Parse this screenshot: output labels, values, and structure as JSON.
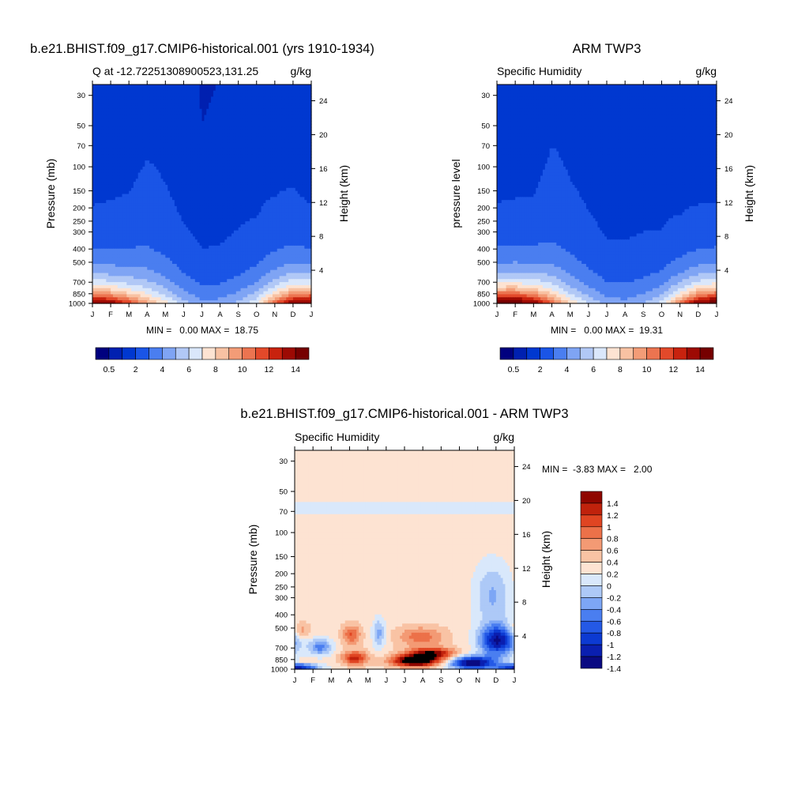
{
  "colors": {
    "seq": [
      "#00007f",
      "#0020b0",
      "#0038d0",
      "#1a55e6",
      "#4a7ef0",
      "#7fa4f4",
      "#b1c8f6",
      "#dae7fb",
      "#fde3d2",
      "#f8c2a3",
      "#f39c77",
      "#ec7450",
      "#e3492a",
      "#c8220e",
      "#9d0a03",
      "#760000"
    ],
    "div": [
      "#0a0a82",
      "#0a1fb0",
      "#0c3ad2",
      "#2459e6",
      "#4a7ef0",
      "#7da6f5",
      "#adc9f7",
      "#d9e8fb",
      "#fde3d2",
      "#f9c3a4",
      "#f39a74",
      "#ec7149",
      "#e04522",
      "#c0220c",
      "#8f0600"
    ],
    "frame": "#000000"
  },
  "chart_data": [
    {
      "type": "heatmap",
      "title": "b.e21.BHIST.f09_g17.CMIP6-historical.001 (yrs 1910-1934)",
      "left_label": "Q at -12.72251308900523,131.25",
      "right_label": "g/kg",
      "ylabel": "Pressure (mb)",
      "y2label": "Height (km)",
      "x_ticks": [
        "J",
        "F",
        "M",
        "A",
        "M",
        "J",
        "J",
        "A",
        "S",
        "O",
        "N",
        "D",
        "J"
      ],
      "y_ticks": [
        30,
        50,
        70,
        100,
        150,
        200,
        250,
        300,
        400,
        500,
        700,
        850,
        1000
      ],
      "y2_ticks": [
        24,
        20,
        16,
        12,
        8,
        4
      ],
      "ylim": [
        1000,
        25
      ],
      "log_scale": true,
      "minmax_text": "MIN =   0.00 MAX =  18.75",
      "min": 0.0,
      "max": 18.75,
      "colorbar_labels": [
        "0.5",
        "2",
        "4",
        "6",
        "8",
        "10",
        "12",
        "14"
      ],
      "levels": [
        0.25,
        0.5,
        1,
        2,
        3,
        4,
        5,
        6,
        7,
        8,
        9,
        10,
        11,
        12,
        14
      ],
      "surface_q": [
        15,
        13.5,
        11,
        8.5,
        6.5,
        4.5,
        3.3,
        3.5,
        4.3,
        6,
        10,
        14,
        15
      ],
      "mid_p": [
        300,
        320,
        360,
        430,
        460,
        480,
        490,
        490,
        480,
        430,
        370,
        330,
        300
      ]
    },
    {
      "type": "heatmap",
      "title": "ARM TWP3",
      "left_label": "Specific Humidity",
      "right_label": "g/kg",
      "ylabel": "pressure level",
      "y2label": "Height (km)",
      "x_ticks": [
        "J",
        "F",
        "M",
        "A",
        "M",
        "J",
        "J",
        "A",
        "S",
        "O",
        "N",
        "D",
        "J"
      ],
      "y_ticks": [
        30,
        50,
        70,
        100,
        150,
        200,
        250,
        300,
        400,
        500,
        700,
        850,
        1000
      ],
      "y2_ticks": [
        24,
        20,
        16,
        12,
        8,
        4
      ],
      "ylim": [
        1000,
        25
      ],
      "log_scale": true,
      "minmax_text": "MIN =   0.00 MAX =  19.31",
      "min": 0.0,
      "max": 19.31,
      "colorbar_labels": [
        "0.5",
        "2",
        "4",
        "6",
        "8",
        "10",
        "12",
        "14"
      ],
      "levels": [
        0.25,
        0.5,
        1,
        2,
        3,
        4,
        5,
        6,
        7,
        8,
        9,
        10,
        11,
        12,
        14
      ],
      "surface_q": [
        16,
        16,
        14,
        10,
        7,
        5,
        3.6,
        3.4,
        4,
        5.5,
        9.5,
        14,
        16
      ],
      "mid_p": [
        295,
        300,
        320,
        410,
        450,
        480,
        500,
        510,
        490,
        420,
        350,
        310,
        295
      ]
    },
    {
      "type": "heatmap",
      "title": "b.e21.BHIST.f09_g17.CMIP6-historical.001 - ARM TWP3",
      "left_label": "Specific Humidity",
      "right_label": "g/kg",
      "ylabel": "Pressure (mb)",
      "y2label": "Height (km)",
      "x_ticks": [
        "J",
        "F",
        "M",
        "A",
        "M",
        "J",
        "J",
        "A",
        "S",
        "O",
        "N",
        "D",
        "J"
      ],
      "y_ticks": [
        30,
        50,
        70,
        100,
        150,
        200,
        250,
        300,
        400,
        500,
        700,
        850,
        1000
      ],
      "y2_ticks": [
        24,
        20,
        16,
        12,
        8,
        4
      ],
      "ylim": [
        1000,
        25
      ],
      "log_scale": true,
      "minmax_text": "MIN =  -3.83 MAX =   2.00",
      "min": -3.83,
      "max": 2.0,
      "colorbar_labels": [
        "1.4",
        "1.2",
        "1",
        "0.8",
        "0.6",
        "0.4",
        "0.2",
        "0",
        "-0.2",
        "-0.4",
        "-0.6",
        "-0.8",
        "-1",
        "-1.2",
        "-1.4"
      ],
      "levels": [
        -1.4,
        -1.2,
        -1,
        -0.8,
        -0.6,
        -0.4,
        -0.2,
        0,
        0.2,
        0.4,
        0.6,
        0.8,
        1,
        1.2,
        1.4
      ]
    }
  ]
}
